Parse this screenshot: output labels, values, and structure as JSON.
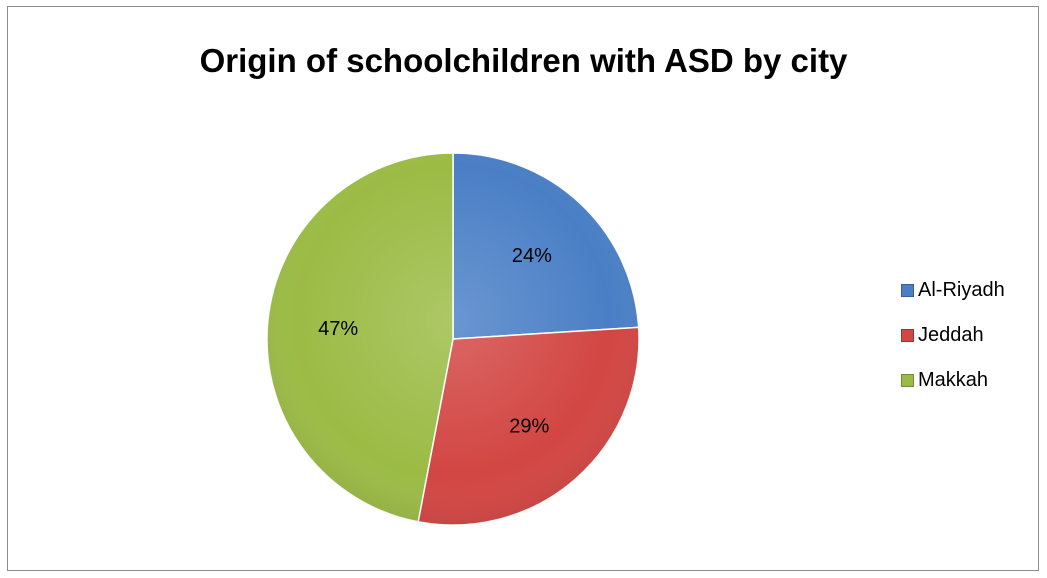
{
  "chart_data": {
    "type": "pie",
    "title": "Origin of schoolchildren with ASD by city",
    "categories": [
      "Al-Riyadh",
      "Jeddah",
      "Makkah"
    ],
    "values": [
      24,
      29,
      47
    ],
    "labels": [
      "24%",
      "29%",
      "47%"
    ],
    "colors": [
      "#4a7fc6",
      "#d24643",
      "#9bbb45"
    ],
    "start_angle_deg": 0,
    "direction": "clockwise",
    "legend_position": "right"
  }
}
